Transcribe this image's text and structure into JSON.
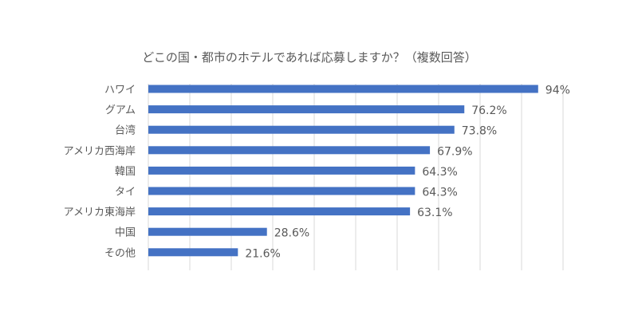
{
  "chart_data": {
    "type": "bar",
    "orientation": "horizontal",
    "title": "どこの国・都市のホテルであれば応募しますか？（複数回答）",
    "categories": [
      "ハワイ",
      "グアム",
      "台湾",
      "アメリカ西海岸",
      "韓国",
      "タイ",
      "アメリカ東海岸",
      "中国",
      "その他"
    ],
    "values": [
      94,
      76.2,
      73.8,
      67.9,
      64.3,
      64.3,
      63.1,
      28.6,
      21.6
    ],
    "data_labels": [
      "94%",
      "76.2%",
      "73.8%",
      "67.9%",
      "64.3%",
      "64.3%",
      "63.1%",
      "28.6%",
      "21.6%"
    ],
    "xlim": [
      0,
      100
    ],
    "grid": "vertical",
    "bar_color": "#4472c4",
    "grid_color": "#d9d9d9",
    "text_color": "#595959"
  }
}
